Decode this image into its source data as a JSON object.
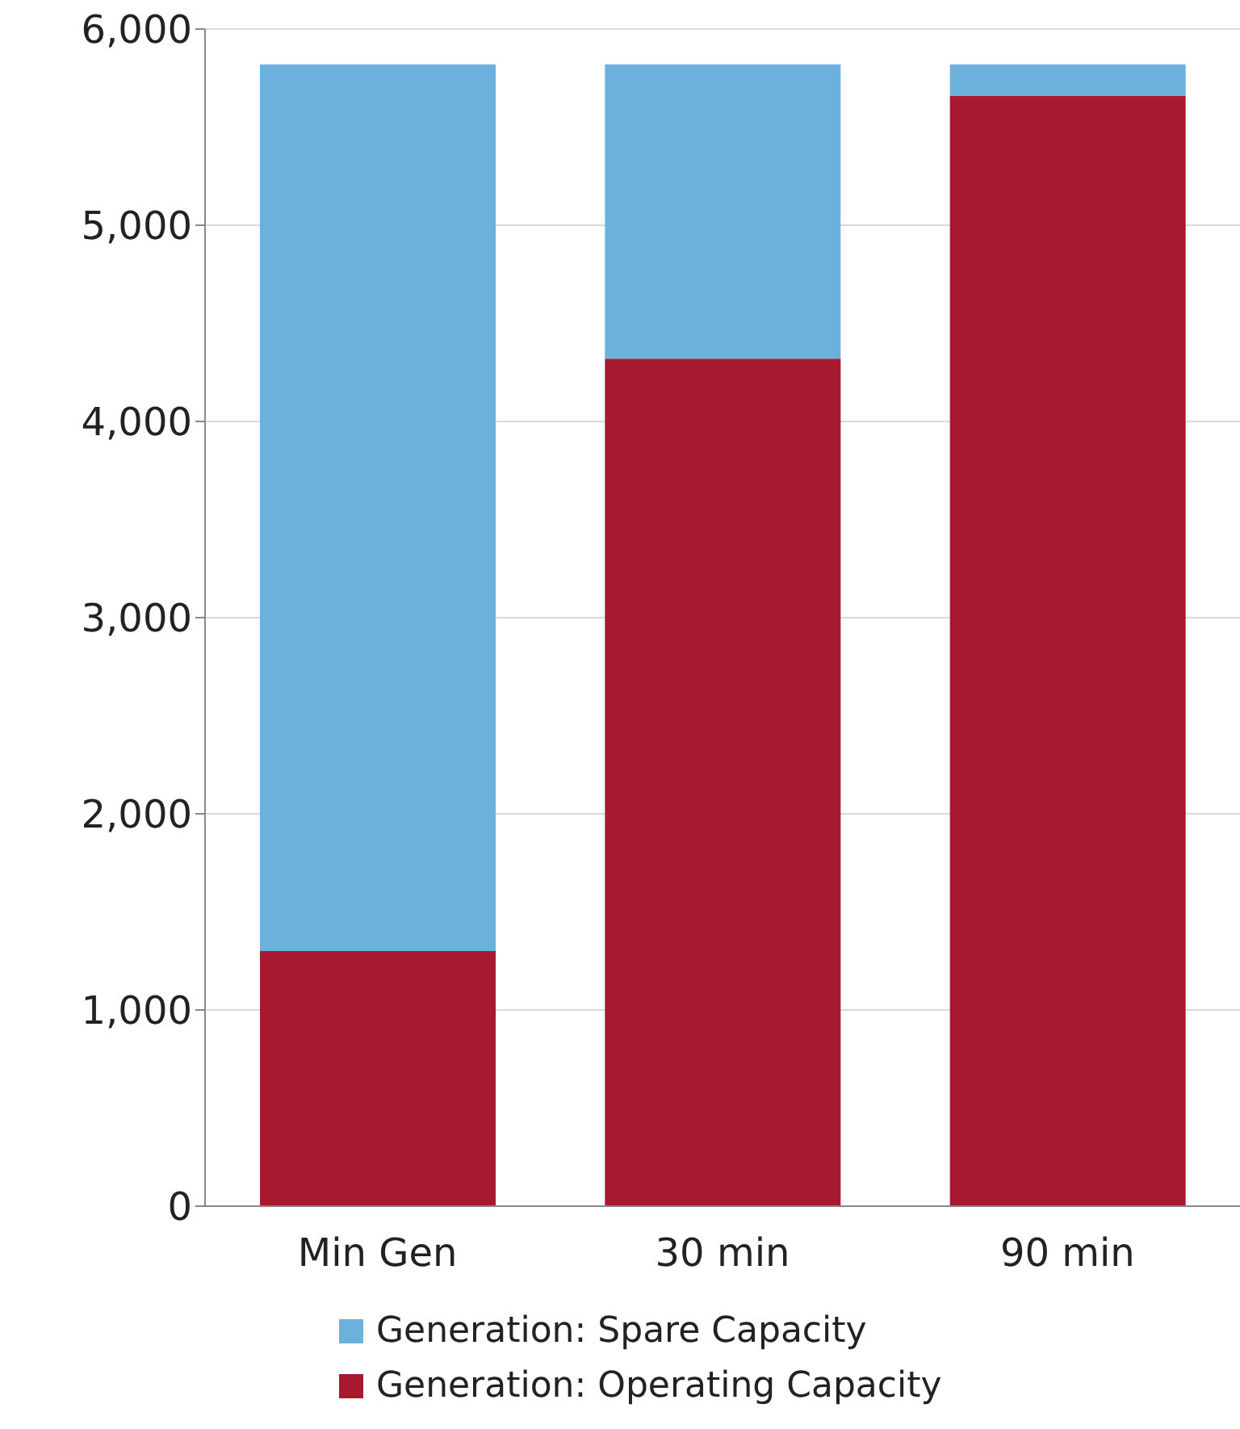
{
  "chart_data": {
    "type": "bar",
    "stacked": true,
    "categories": [
      "Min Gen",
      "30 min",
      "90 min"
    ],
    "series": [
      {
        "name": "Generation: Operating Capacity",
        "color": "#a6192e",
        "values": [
          1300,
          4320,
          5660
        ]
      },
      {
        "name": "Generation: Spare Capacity",
        "color": "#6cb0dd",
        "values": [
          4520,
          1500,
          160
        ]
      }
    ],
    "ylim": [
      0,
      6000
    ],
    "yticks": [
      {
        "value": 0,
        "label": "0"
      },
      {
        "value": 1000,
        "label": "1,000"
      },
      {
        "value": 2000,
        "label": "2,000"
      },
      {
        "value": 3000,
        "label": "3,000"
      },
      {
        "value": 4000,
        "label": "4,000"
      },
      {
        "value": 5000,
        "label": "5,000"
      },
      {
        "value": 6000,
        "label": "6,000"
      }
    ],
    "grid": "y",
    "legend": "bottom"
  }
}
